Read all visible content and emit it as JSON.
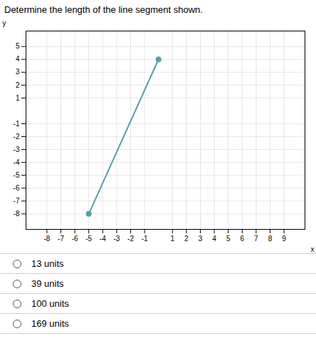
{
  "chart_data": {
    "type": "line",
    "title": "Determine the length of the line segment shown.",
    "x": [
      -5,
      0
    ],
    "values": [
      -8,
      4
    ],
    "color": "#5a9ea8",
    "marker": "o",
    "xlabel": "x",
    "ylabel": "y",
    "xlim": [
      -9.5,
      10.5
    ],
    "ylim": [
      -9.2,
      6.2
    ],
    "xticks": [
      -8,
      -7,
      -6,
      -5,
      -4,
      -3,
      -2,
      -1,
      1,
      2,
      3,
      4,
      5,
      6,
      7,
      8,
      9
    ],
    "yticks": [
      -8,
      -7,
      -6,
      -5,
      -4,
      -3,
      -2,
      -1,
      1,
      2,
      3,
      4,
      5
    ],
    "grid": true,
    "annotations": [
      "13 units",
      "39 units",
      "100 units",
      "169 units"
    ]
  }
}
